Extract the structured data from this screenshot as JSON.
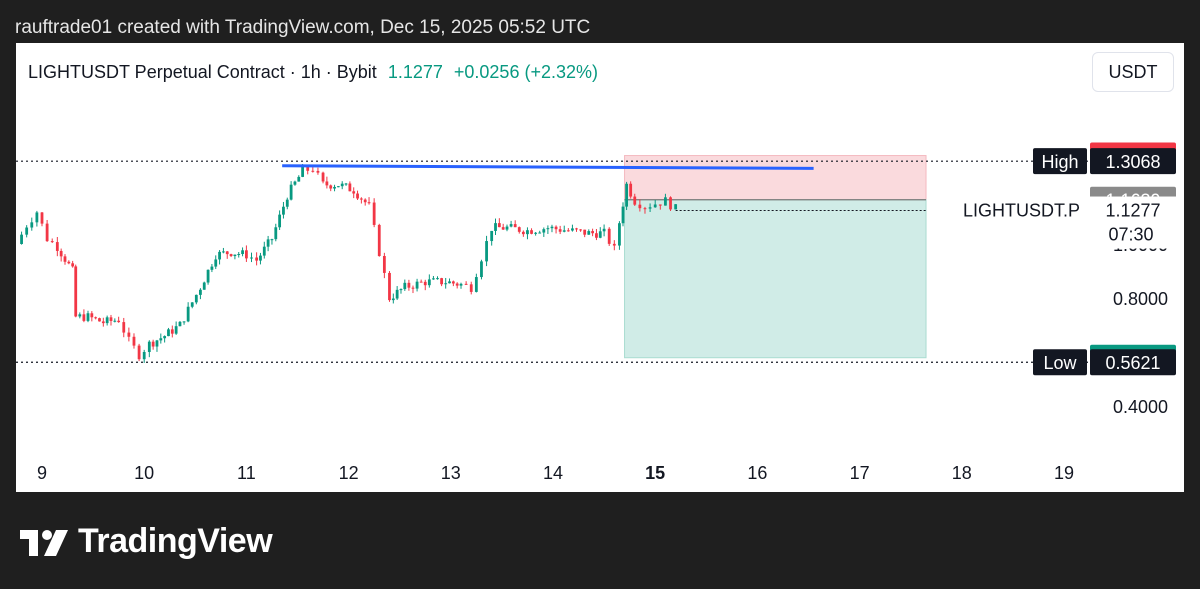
{
  "header": {
    "caption": "rauftrade01 created with TradingView.com, Dec 15, 2025 05:52 UTC"
  },
  "legend": {
    "symbol": "LIGHTUSDT Perpetual Contract · 1h · Bybit",
    "price": "1.1277",
    "change": "+0.0256 (+2.32%)"
  },
  "currency_button": "USDT",
  "brand": {
    "name": "TradingView"
  },
  "colors": {
    "up": "#089981",
    "down": "#f23645",
    "line": "#2962ff",
    "profit": "#d0ece7",
    "loss": "#fadadd"
  },
  "chart_data": {
    "type": "candlestick",
    "timeframe": "1h",
    "x_ticks": [
      "9",
      "10",
      "11",
      "12",
      "13",
      "14",
      "15",
      "16",
      "17",
      "18",
      "19"
    ],
    "y_ticks": [
      "0.4000",
      "0.8000",
      "1.0000"
    ],
    "price_range": [
      0.28,
      1.5
    ],
    "day_range": [
      8.75,
      19.25
    ],
    "series": [
      {
        "day": 8.75,
        "close": 1.0
      },
      {
        "day": 8.85,
        "close": 1.07
      },
      {
        "day": 8.95,
        "close": 1.12
      },
      {
        "day": 9.05,
        "close": 1.02
      },
      {
        "day": 9.15,
        "close": 0.99
      },
      {
        "day": 9.3,
        "close": 0.9
      },
      {
        "day": 9.33,
        "close": 0.73
      },
      {
        "day": 9.45,
        "close": 0.73
      },
      {
        "day": 9.6,
        "close": 0.71
      },
      {
        "day": 9.75,
        "close": 0.72
      },
      {
        "day": 9.85,
        "close": 0.64
      },
      {
        "day": 9.95,
        "close": 0.59
      },
      {
        "day": 10.05,
        "close": 0.63
      },
      {
        "day": 10.2,
        "close": 0.66
      },
      {
        "day": 10.35,
        "close": 0.7
      },
      {
        "day": 10.55,
        "close": 0.84
      },
      {
        "day": 10.7,
        "close": 0.96
      },
      {
        "day": 10.85,
        "close": 0.97
      },
      {
        "day": 11.0,
        "close": 0.96
      },
      {
        "day": 11.1,
        "close": 0.94
      },
      {
        "day": 11.25,
        "close": 1.02
      },
      {
        "day": 11.4,
        "close": 1.18
      },
      {
        "day": 11.55,
        "close": 1.27
      },
      {
        "day": 11.65,
        "close": 1.28
      },
      {
        "day": 11.75,
        "close": 1.22
      },
      {
        "day": 11.9,
        "close": 1.22
      },
      {
        "day": 12.05,
        "close": 1.2
      },
      {
        "day": 12.2,
        "close": 1.14
      },
      {
        "day": 12.3,
        "close": 0.97
      },
      {
        "day": 12.4,
        "close": 0.8
      },
      {
        "day": 12.55,
        "close": 0.84
      },
      {
        "day": 12.75,
        "close": 0.86
      },
      {
        "day": 12.95,
        "close": 0.86
      },
      {
        "day": 13.1,
        "close": 0.85
      },
      {
        "day": 13.2,
        "close": 0.84
      },
      {
        "day": 13.3,
        "close": 0.95
      },
      {
        "day": 13.4,
        "close": 1.06
      },
      {
        "day": 13.55,
        "close": 1.06
      },
      {
        "day": 13.75,
        "close": 1.05
      },
      {
        "day": 13.95,
        "close": 1.06
      },
      {
        "day": 14.15,
        "close": 1.05
      },
      {
        "day": 14.35,
        "close": 1.04
      },
      {
        "day": 14.5,
        "close": 1.04
      },
      {
        "day": 14.6,
        "close": 0.98
      },
      {
        "day": 14.65,
        "close": 1.08
      },
      {
        "day": 14.72,
        "close": 1.22
      },
      {
        "day": 14.8,
        "close": 1.16
      },
      {
        "day": 14.9,
        "close": 1.14
      },
      {
        "day": 15.0,
        "close": 1.15
      },
      {
        "day": 15.1,
        "close": 1.16
      },
      {
        "day": 15.2,
        "close": 1.13
      }
    ],
    "horizontal_line": {
      "start_day": 11.35,
      "end_day": 16.55,
      "start_price": 1.29,
      "end_price": 1.28
    },
    "dotted_levels": [
      1.3068,
      0.5621
    ],
    "position": {
      "start_day": 14.7,
      "end_day": 17.65,
      "stop": 1.3276,
      "entry": 1.1639,
      "target": 0.5788
    },
    "price_labels": [
      {
        "side_label": "",
        "value": "1.3276",
        "price": 1.3276,
        "color": "#f23645"
      },
      {
        "side_label": "High",
        "value": "1.3068",
        "price": 1.3068,
        "color": "#131722"
      },
      {
        "side_label": "",
        "value": "1.1639",
        "price": 1.1639,
        "color": "#8a8a8a"
      },
      {
        "side_label": "",
        "value": "0.5788",
        "price": 0.5788,
        "color": "#089981"
      },
      {
        "side_label": "Low",
        "value": "0.5621",
        "price": 0.5621,
        "color": "#131722"
      }
    ],
    "last_price": {
      "symbol": "LIGHTUSDT.P",
      "value": "1.1277",
      "countdown": "07:30",
      "price": 1.1277
    }
  }
}
